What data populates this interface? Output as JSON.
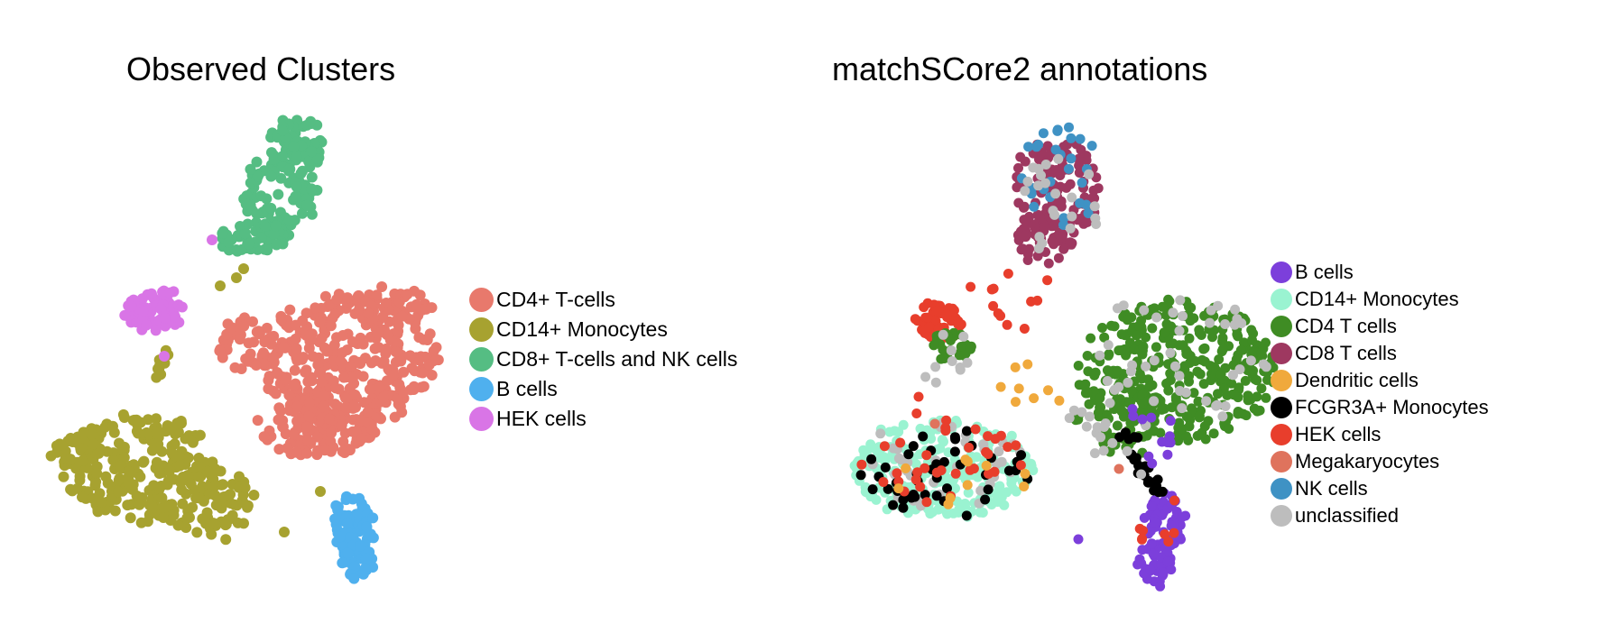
{
  "chart_data": [
    {
      "type": "scatter",
      "title": "Observed Clusters",
      "xlabel": "",
      "ylabel": "",
      "grid": false,
      "axes_visible": false,
      "legend_position": "right",
      "series": [
        {
          "name": "CD4+ T-cells",
          "color": "#E8796C"
        },
        {
          "name": "CD14+ Monocytes",
          "color": "#A7A230"
        },
        {
          "name": "CD8+ T-cells and NK cells",
          "color": "#55BD83"
        },
        {
          "name": "B cells",
          "color": "#4FB0EE"
        },
        {
          "name": "HEK cells",
          "color": "#D975E6"
        }
      ]
    },
    {
      "type": "scatter",
      "title": "matchSCore2 annotations",
      "xlabel": "",
      "ylabel": "",
      "grid": false,
      "axes_visible": false,
      "legend_position": "right",
      "series": [
        {
          "name": "B cells",
          "color": "#7C3FDB"
        },
        {
          "name": "CD14+ Monocytes",
          "color": "#9AF3D1"
        },
        {
          "name": "CD4 T cells",
          "color": "#3F8C24"
        },
        {
          "name": "CD8 T cells",
          "color": "#9E3860"
        },
        {
          "name": "Dendritic cells",
          "color": "#F0A93C"
        },
        {
          "name": "FCGR3A+ Monocytes",
          "color": "#000000"
        },
        {
          "name": "HEK cells",
          "color": "#E83E2C"
        },
        {
          "name": "Megakaryocytes",
          "color": "#DF735D"
        },
        {
          "name": "NK cells",
          "color": "#3F92C4"
        },
        {
          "name": "unclassified",
          "color": "#BDBDBD"
        }
      ]
    }
  ]
}
